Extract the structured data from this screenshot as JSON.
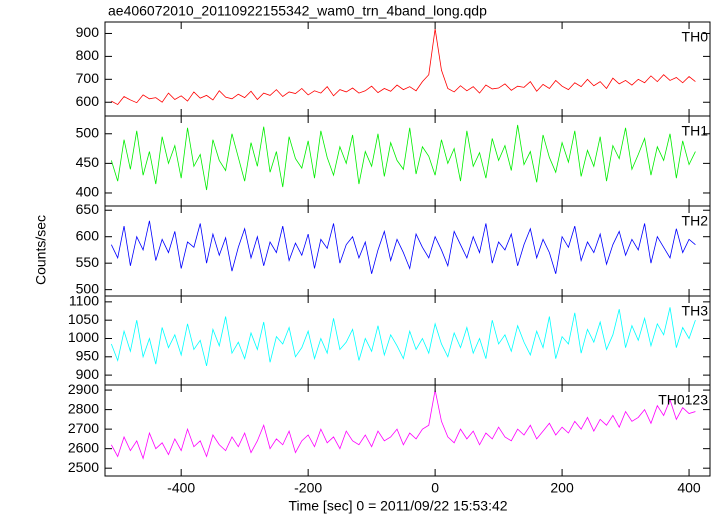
{
  "chart_data": {
    "type": "line",
    "title": "ae406072010_20110922155342_wam0_trn_4band_long.qdp",
    "xlabel": "Time [sec] 0 = 2011/09/22 15:53:42",
    "ylabel": "Counts/sec",
    "xlim": [
      -520,
      433
    ],
    "xticks": [
      -400,
      -200,
      0,
      200,
      400
    ],
    "x": [
      -510,
      -500,
      -490,
      -480,
      -470,
      -460,
      -450,
      -440,
      -430,
      -420,
      -410,
      -400,
      -390,
      -380,
      -370,
      -360,
      -350,
      -340,
      -330,
      -320,
      -310,
      -300,
      -290,
      -280,
      -270,
      -260,
      -250,
      -240,
      -230,
      -220,
      -210,
      -200,
      -190,
      -180,
      -170,
      -160,
      -150,
      -140,
      -130,
      -120,
      -110,
      -100,
      -90,
      -80,
      -70,
      -60,
      -50,
      -40,
      -30,
      -20,
      -10,
      0,
      10,
      20,
      30,
      40,
      50,
      60,
      70,
      80,
      90,
      100,
      110,
      120,
      130,
      140,
      150,
      160,
      170,
      180,
      190,
      200,
      210,
      220,
      230,
      240,
      250,
      260,
      270,
      280,
      290,
      300,
      310,
      320,
      330,
      340,
      350,
      360,
      370,
      380,
      390,
      400,
      410
    ],
    "series": [
      {
        "name": "TH0",
        "color": "#ff0000",
        "ylim": [
          540,
          950
        ],
        "yticks": [
          600,
          700,
          800,
          900
        ],
        "values": [
          605,
          590,
          625,
          610,
          598,
          632,
          615,
          620,
          600,
          640,
          612,
          628,
          605,
          645,
          618,
          630,
          610,
          650,
          622,
          615,
          635,
          620,
          648,
          612,
          640,
          630,
          655,
          625,
          645,
          638,
          660,
          632,
          650,
          640,
          668,
          628,
          655,
          645,
          662,
          640,
          650,
          670,
          642,
          660,
          648,
          675,
          655,
          668,
          650,
          690,
          720,
          920,
          740,
          660,
          645,
          672,
          650,
          668,
          640,
          675,
          658,
          662,
          680,
          652,
          670,
          665,
          690,
          648,
          678,
          660,
          695,
          670,
          655,
          685,
          668,
          700,
          672,
          690,
          660,
          705,
          680,
          695,
          675,
          700,
          685,
          715,
          690,
          720,
          695,
          708,
          685,
          712,
          690
        ]
      },
      {
        "name": "TH1",
        "color": "#00ee00",
        "ylim": [
          378,
          530
        ],
        "yticks": [
          400,
          450,
          500
        ],
        "values": [
          455,
          420,
          490,
          440,
          505,
          430,
          470,
          415,
          495,
          450,
          480,
          425,
          510,
          445,
          465,
          405,
          490,
          455,
          438,
          500,
          460,
          420,
          485,
          445,
          512,
          435,
          470,
          410,
          495,
          458,
          442,
          488,
          425,
          505,
          460,
          430,
          478,
          450,
          498,
          415,
          470,
          445,
          500,
          428,
          485,
          455,
          440,
          510,
          432,
          478,
          462,
          430,
          490,
          450,
          475,
          420,
          505,
          445,
          468,
          425,
          492,
          455,
          480,
          438,
          515,
          448,
          470,
          418,
          498,
          460,
          435,
          485,
          452,
          505,
          428,
          472,
          445,
          495,
          420,
          480,
          458,
          510,
          440,
          465,
          492,
          430,
          478,
          455,
          500,
          425,
          488,
          448,
          470
        ]
      },
      {
        "name": "TH2",
        "color": "#0000ff",
        "ylim": [
          488,
          658
        ],
        "yticks": [
          500,
          550,
          600,
          650
        ],
        "values": [
          585,
          560,
          620,
          545,
          600,
          575,
          630,
          555,
          595,
          570,
          610,
          540,
          590,
          580,
          625,
          550,
          605,
          565,
          598,
          535,
          580,
          615,
          560,
          600,
          545,
          590,
          570,
          620,
          555,
          588,
          565,
          605,
          540,
          595,
          578,
          625,
          550,
          585,
          600,
          560,
          590,
          530,
          575,
          610,
          555,
          595,
          570,
          540,
          605,
          580,
          560,
          600,
          575,
          545,
          610,
          585,
          560,
          600,
          570,
          625,
          550,
          590,
          575,
          605,
          545,
          585,
          615,
          560,
          595,
          570,
          530,
          600,
          580,
          620,
          555,
          590,
          570,
          605,
          548,
          585,
          610,
          565,
          595,
          575,
          625,
          550,
          600,
          580,
          560,
          615,
          570,
          595,
          585
        ]
      },
      {
        "name": "TH3",
        "color": "#00ffff",
        "ylim": [
          873,
          1116
        ],
        "yticks": [
          900,
          950,
          1000,
          1050,
          1100
        ],
        "values": [
          985,
          940,
          1020,
          965,
          1050,
          950,
          1000,
          930,
          1030,
          975,
          1010,
          955,
          1040,
          970,
          995,
          925,
          1025,
          980,
          1060,
          960,
          990,
          945,
          1015,
          970,
          1045,
          935,
          1005,
          985,
          1030,
          950,
          975,
          1020,
          945,
          1000,
          960,
          1055,
          970,
          990,
          1025,
          940,
          1000,
          965,
          1035,
          955,
          1010,
          980,
          945,
          1020,
          970,
          1000,
          960,
          1040,
          985,
          950,
          1015,
          975,
          1030,
          960,
          1000,
          945,
          1050,
          985,
          1010,
          965,
          1035,
          990,
          955,
          1020,
          975,
          1060,
          945,
          1005,
          985,
          1070,
          960,
          1025,
          990,
          1045,
          970,
          1010,
          1080,
          975,
          1035,
          995,
          1055,
          980,
          1040,
          1010,
          1085,
          975,
          1030,
          1000,
          1050
        ]
      },
      {
        "name": "TH0123",
        "color": "#ff00ff",
        "ylim": [
          2460,
          2926
        ],
        "yticks": [
          2500,
          2600,
          2700,
          2800,
          2900
        ],
        "values": [
          2620,
          2560,
          2660,
          2590,
          2640,
          2550,
          2680,
          2600,
          2630,
          2570,
          2650,
          2590,
          2700,
          2610,
          2640,
          2560,
          2670,
          2620,
          2590,
          2660,
          2610,
          2680,
          2580,
          2640,
          2720,
          2600,
          2650,
          2620,
          2690,
          2580,
          2640,
          2670,
          2610,
          2700,
          2630,
          2660,
          2600,
          2690,
          2640,
          2620,
          2670,
          2610,
          2690,
          2640,
          2660,
          2700,
          2620,
          2680,
          2650,
          2700,
          2720,
          2900,
          2740,
          2660,
          2630,
          2700,
          2650,
          2690,
          2620,
          2680,
          2650,
          2710,
          2660,
          2640,
          2700,
          2670,
          2720,
          2650,
          2690,
          2730,
          2670,
          2710,
          2680,
          2740,
          2700,
          2760,
          2690,
          2750,
          2720,
          2770,
          2710,
          2790,
          2740,
          2760,
          2800,
          2730,
          2820,
          2770,
          2850,
          2750,
          2810,
          2780,
          2790
        ]
      }
    ]
  }
}
